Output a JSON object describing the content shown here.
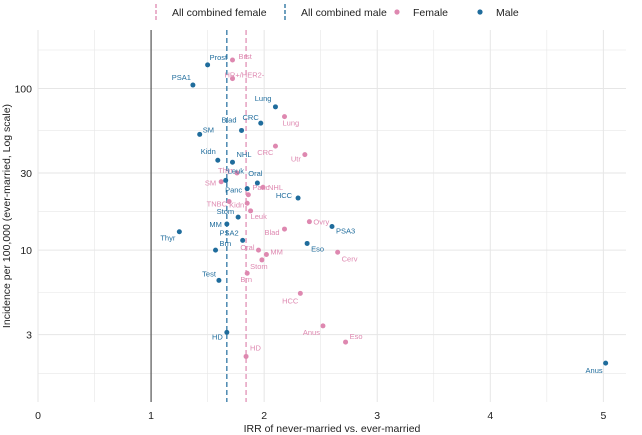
{
  "chart_data": {
    "type": "scatter",
    "xlabel": "IRR of never-married vs. ever-married",
    "ylabel": "Incidence per 100,000 (ever-married, Log scale)",
    "xlim": [
      0,
      5.2
    ],
    "ylim_log": [
      1.15,
      230
    ],
    "x_ticks": [
      0,
      1,
      2,
      3,
      4,
      5
    ],
    "y_ticks": [
      3,
      10,
      30,
      100
    ],
    "reference_x": 1,
    "colors": {
      "female": "#de88b0",
      "male": "#1f6c9c",
      "grid": "#e6e6e6",
      "axis": "#555555"
    },
    "legend": [
      {
        "name": "All combined female",
        "kind": "line",
        "group": "female"
      },
      {
        "name": "All combined male",
        "kind": "line",
        "group": "male"
      },
      {
        "name": "Female",
        "kind": "point",
        "group": "female"
      },
      {
        "name": "Male",
        "kind": "point",
        "group": "male"
      }
    ],
    "combined_lines": [
      {
        "group": "female",
        "x": 1.84
      },
      {
        "group": "male",
        "x": 1.67
      }
    ],
    "series": [
      {
        "name": "Female",
        "points": [
          {
            "label": "Brst",
            "x": 1.72,
            "y": 150
          },
          {
            "label": "HR+/HER2-",
            "x": 1.72,
            "y": 115
          },
          {
            "label": "Lung",
            "x": 2.18,
            "y": 67
          },
          {
            "label": "CRC",
            "x": 2.1,
            "y": 44
          },
          {
            "label": "Utr",
            "x": 2.36,
            "y": 39
          },
          {
            "label": "Thyr",
            "x": 1.76,
            "y": 30
          },
          {
            "label": "SM",
            "x": 1.62,
            "y": 26.5
          },
          {
            "label": "NHL",
            "x": 1.99,
            "y": 24.5
          },
          {
            "label": "Panc",
            "x": 1.86,
            "y": 22
          },
          {
            "label": "TNBC",
            "x": 1.69,
            "y": 20
          },
          {
            "label": "Kidn",
            "x": 1.85,
            "y": 19.5
          },
          {
            "label": "Leuk",
            "x": 1.88,
            "y": 17.5
          },
          {
            "label": "Ovry",
            "x": 2.4,
            "y": 15
          },
          {
            "label": "Blad",
            "x": 2.18,
            "y": 13.5
          },
          {
            "label": "Oral",
            "x": 1.95,
            "y": 10
          },
          {
            "label": "MM",
            "x": 2.02,
            "y": 9.4
          },
          {
            "label": "Cerv",
            "x": 2.65,
            "y": 9.7
          },
          {
            "label": "Stom",
            "x": 1.98,
            "y": 8.7
          },
          {
            "label": "Brn",
            "x": 1.85,
            "y": 7.2
          },
          {
            "label": "HCC",
            "x": 2.32,
            "y": 5.4
          },
          {
            "label": "Anus",
            "x": 2.52,
            "y": 3.4
          },
          {
            "label": "Eso",
            "x": 2.72,
            "y": 2.7
          },
          {
            "label": "HD",
            "x": 1.84,
            "y": 2.2
          }
        ]
      },
      {
        "name": "Male",
        "points": [
          {
            "label": "Prost",
            "x": 1.5,
            "y": 140
          },
          {
            "label": "PSA1",
            "x": 1.37,
            "y": 105
          },
          {
            "label": "Lung",
            "x": 2.1,
            "y": 77
          },
          {
            "label": "CRC",
            "x": 1.97,
            "y": 61
          },
          {
            "label": "Blad",
            "x": 1.8,
            "y": 55
          },
          {
            "label": "SM",
            "x": 1.43,
            "y": 52
          },
          {
            "label": "Kidn",
            "x": 1.59,
            "y": 36
          },
          {
            "label": "NHL",
            "x": 1.72,
            "y": 35
          },
          {
            "label": "Leuk",
            "x": 1.66,
            "y": 27
          },
          {
            "label": "Oral",
            "x": 1.94,
            "y": 26
          },
          {
            "label": "Panc",
            "x": 1.85,
            "y": 24
          },
          {
            "label": "HCC",
            "x": 2.3,
            "y": 21
          },
          {
            "label": "Stom",
            "x": 1.77,
            "y": 16
          },
          {
            "label": "MM",
            "x": 1.67,
            "y": 14.5
          },
          {
            "label": "PSA3",
            "x": 2.6,
            "y": 14
          },
          {
            "label": "Thyr",
            "x": 1.25,
            "y": 13
          },
          {
            "label": "PSA2",
            "x": 1.81,
            "y": 11.5
          },
          {
            "label": "Brn",
            "x": 1.57,
            "y": 10
          },
          {
            "label": "Eso",
            "x": 2.38,
            "y": 11
          },
          {
            "label": "Test",
            "x": 1.6,
            "y": 6.5
          },
          {
            "label": "HD",
            "x": 1.67,
            "y": 3.1
          },
          {
            "label": "Anus",
            "x": 5.02,
            "y": 2.0
          }
        ]
      }
    ]
  }
}
